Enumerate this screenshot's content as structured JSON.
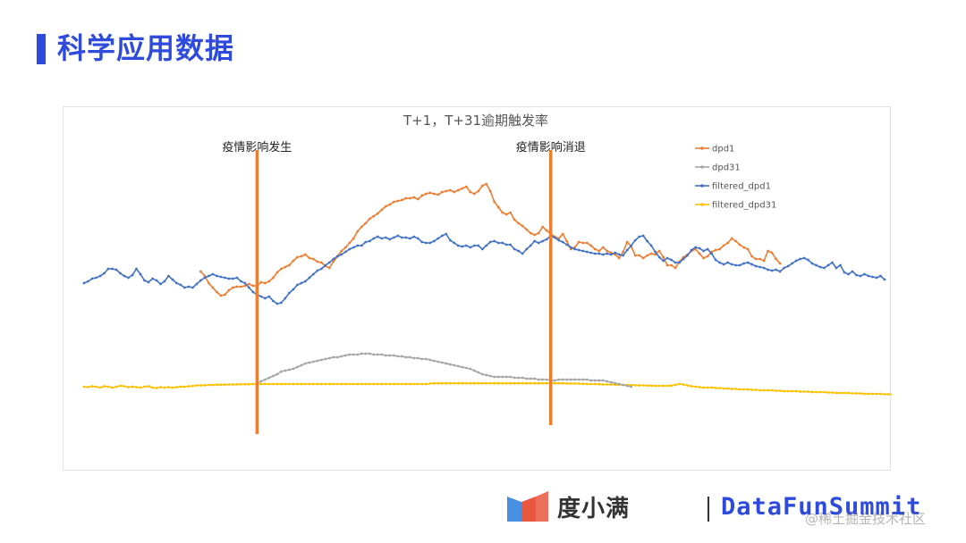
{
  "slide": {
    "title": "科学应用数据"
  },
  "footer": {
    "brand_logo_text": "度小满",
    "event_text": "DataFunSummit",
    "watermark": "@稀土掘金技术社区"
  },
  "colors": {
    "accent": "#2f4bdc",
    "dpd1": "#ed7d31",
    "dpd31": "#a5a5a5",
    "filtered_dpd1": "#4472c4",
    "filtered_dpd31": "#ffc000",
    "event_line": "#ed7d31"
  },
  "chart_data": {
    "type": "line",
    "title": "T+1，T+31逾期触发率",
    "xlabel": "",
    "ylabel": "",
    "axes_visible": false,
    "grid": false,
    "legend_position": "right",
    "n_points": 200,
    "annotations": [
      {
        "label": "疫情影响发生",
        "x_index": 43
      },
      {
        "label": "疫情影响消退",
        "x_index": 116
      }
    ],
    "series": [
      {
        "name": "dpd1",
        "color": "#ed7d31",
        "segments": [
          {
            "start": 29,
            "values": [
              323,
              318,
              310,
              305,
              300,
              296,
              297,
              302,
              305,
              306,
              306,
              307,
              309,
              307,
              307,
              311,
              310,
              312,
              316,
              322,
              326,
              328,
              330,
              335,
              339,
              340,
              342,
              338,
              337,
              334,
              333,
              329,
              327,
              334,
              340,
              346,
              350,
              355,
              360,
              368,
              373,
              377,
              382,
              385,
              388,
              392,
              396,
              398,
              401,
              402,
              403,
              405,
              405,
              406,
              404,
              408,
              410,
              411,
              410,
              409,
              412,
              413,
              414,
              412,
              414,
              416,
              418,
              412,
              410,
              413,
              419,
              421,
              413,
              401,
              395,
              389,
              387,
              389,
              381,
              377,
              374,
              370,
              366,
              364,
              366,
              373,
              369,
              365,
              362,
              360,
              365,
              357,
              348,
              350,
              356,
              355,
              355,
              352,
              348,
              346,
              350,
              346,
              344,
              342,
              338,
              345,
              356,
              351,
              341,
              341,
              338,
              341,
              343,
              342,
              346,
              339,
              330,
              330,
              327,
              334,
              339,
              342,
              346,
              348,
              343,
              338,
              340,
              345,
              347,
              348,
              352,
              355,
              360,
              357,
              353,
              350,
              348,
              340,
              337,
              337,
              335,
              346,
              344,
              337,
              332
            ]
          }
        ]
      },
      {
        "name": "dpd31",
        "color": "#a5a5a5",
        "segments": [
          {
            "start": 43,
            "values": [
              4,
              6,
              8,
              10,
              12,
              14,
              17,
              18,
              19,
              20,
              22,
              24,
              26,
              27,
              28,
              29,
              30,
              31,
              32,
              33,
              33,
              34,
              35,
              36,
              36,
              36,
              37,
              37,
              37,
              36,
              36,
              36,
              35,
              35,
              35,
              34,
              34,
              33,
              33,
              32,
              32,
              31,
              31,
              30,
              29,
              28,
              27,
              26,
              25,
              24,
              23,
              22,
              21,
              20,
              18,
              16,
              14,
              13,
              12,
              11,
              11,
              11,
              11,
              11,
              10,
              10,
              10,
              9,
              9,
              9,
              8,
              8,
              8,
              7,
              7,
              8,
              8,
              8,
              8,
              8,
              8,
              8,
              8,
              7,
              7,
              7,
              7,
              6,
              5,
              4,
              3,
              2,
              1,
              0
            ]
          }
        ]
      },
      {
        "name": "filtered_dpd1",
        "color": "#4472c4",
        "segments": [
          {
            "start": 0,
            "values": [
              310,
              312,
              315,
              316,
              318,
              321,
              326,
              326,
              325,
              321,
              318,
              316,
              319,
              326,
              320,
              313,
              311,
              315,
              313,
              309,
              312,
              318,
              314,
              310,
              308,
              305,
              306,
              305,
              309,
              313,
              316,
              318,
              320,
              318,
              317,
              316,
              315,
              315,
              316,
              312,
              310,
              305,
              300,
              297,
              295,
              293,
              295,
              290,
              287,
              288,
              293,
              299,
              303,
              308,
              310,
              312,
              316,
              320,
              324,
              326,
              330,
              333,
              337,
              340,
              342,
              345,
              348,
              350,
              352,
              352,
              356,
              357,
              360,
              362,
              360,
              361,
              359,
              361,
              363,
              361,
              361,
              360,
              362,
              360,
              356,
              355,
              355,
              357,
              360,
              363,
              365,
              358,
              355,
              352,
              351,
              352,
              350,
              352,
              352,
              348,
              352,
              356,
              357,
              355,
              355,
              353,
              353,
              348,
              346,
              343,
              348,
              352,
              357,
              355,
              357,
              359,
              363,
              361,
              358,
              356,
              353,
              350,
              348,
              347,
              346,
              345,
              344,
              343,
              343,
              342,
              343,
              342,
              344,
              342,
              341,
              347,
              352,
              358,
              362,
              363,
              357,
              352,
              345,
              339,
              335,
              338,
              336,
              333,
              333,
              337,
              341,
              347,
              350,
              349,
              346,
              348,
              343,
              336,
              333,
              331,
              333,
              331,
              330,
              330,
              332,
              333,
              331,
              329,
              328,
              327,
              325,
              324,
              325,
              323,
              327,
              329,
              332,
              335,
              337,
              338,
              336,
              332,
              330,
              328,
              327,
              330,
              333,
              327,
              330,
              322,
              320,
              323,
              319,
              318,
              320,
              318,
              317,
              316,
              318,
              314
            ]
          }
        ]
      },
      {
        "name": "filtered_dpd31",
        "color": "#ffc000",
        "segments": [
          {
            "start": 0,
            "values": [
              0,
              -0.5,
              0.5,
              0,
              -1,
              0.5,
              0,
              -1,
              0,
              1,
              0.5,
              -0.5,
              0,
              -0.5,
              -1,
              0,
              0.5,
              -1,
              -1.5,
              -0.5,
              -1,
              -0.5,
              -1,
              -0.5,
              0,
              0,
              0.5,
              0.8,
              1.5,
              1.5,
              1.6,
              2,
              2,
              2.2,
              2.3,
              2.3,
              2.5,
              2.5,
              2.6,
              2.7,
              2.8,
              2.8,
              3,
              3,
              3,
              3,
              3,
              3,
              3,
              3,
              3,
              3,
              3,
              3,
              3,
              3,
              3,
              3,
              3,
              3,
              3,
              3,
              3,
              3,
              3,
              3,
              3,
              3,
              3,
              3,
              3,
              3,
              3,
              3,
              3,
              3,
              3,
              3,
              3,
              3,
              3,
              3,
              3,
              3,
              3,
              3,
              3.5,
              3.8,
              3.8,
              3.8,
              3.8,
              3.8,
              3.8,
              3.8,
              3.8,
              3.8,
              3.8,
              3.8,
              3.8,
              3.8,
              3.8,
              3.8,
              3.8,
              3.8,
              3.8,
              3.8,
              3.8,
              3.8,
              3.8,
              3.8,
              3.8,
              3.8,
              3.8,
              3.8,
              3.8,
              3.8,
              3.8,
              3.8,
              3.8,
              3.8,
              3.6,
              3.5,
              3.5,
              3.5,
              3.2,
              3,
              3,
              3,
              2.8,
              2.5,
              2.5,
              2.5,
              2.3,
              2,
              2,
              2,
              1.8,
              1.6,
              1.5,
              1.5,
              1.3,
              1.2,
              1,
              1,
              1,
              1,
              1.2,
              2,
              3,
              2.5,
              1.5,
              0.5,
              0,
              -0.5,
              -1,
              -1,
              -1,
              -1.5,
              -1.5,
              -2,
              -2,
              -2.5,
              -2.5,
              -3,
              -3,
              -3,
              -3.5,
              -3.5,
              -4,
              -4,
              -4,
              -4,
              -4.5,
              -4.5,
              -5,
              -5,
              -5,
              -5,
              -5.5,
              -5.5,
              -5.5,
              -6,
              -6,
              -6,
              -6,
              -6.5,
              -6.5,
              -7,
              -7,
              -7,
              -7,
              -7.5,
              -7.5,
              -7.5,
              -8,
              -8,
              -8,
              -8,
              -8,
              -8.5,
              -8.5,
              -8.5,
              -8.5,
              -9,
              -9,
              -9,
              -9,
              -9.5,
              -9.5,
              -9.5,
              -10
            ]
          }
        ]
      }
    ]
  }
}
